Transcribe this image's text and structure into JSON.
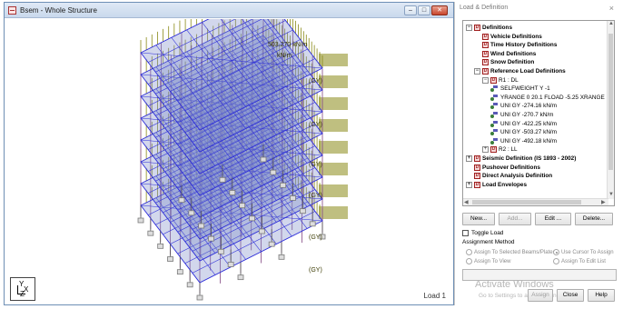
{
  "viewport": {
    "title": "Bsem - Whole Structure",
    "load_label": "Load 1",
    "axes": {
      "y": "Y",
      "x": "X",
      "z": "Z"
    },
    "load_annotations": [
      "503.270 kN/m",
      "kN/m",
      "(GY)",
      "(GY)",
      "(GY)",
      "(GY)",
      "(GY)",
      "(GY)"
    ],
    "colors": {
      "grid": "#2b2bd9",
      "loads": "#8a8a18",
      "members": "#8f5a8f",
      "supports": "#7a7a7a"
    }
  },
  "panel": {
    "title": "Load & Definition",
    "close": "×",
    "tree": [
      {
        "label": "Definitions",
        "level": 0,
        "expander": "−",
        "icon": "def",
        "bold": true
      },
      {
        "label": "Vehicle Definitions",
        "level": 1,
        "icon": "def",
        "bold": true
      },
      {
        "label": "Time History Definitions",
        "level": 1,
        "icon": "def",
        "bold": true
      },
      {
        "label": "Wind Definitions",
        "level": 1,
        "icon": "def",
        "bold": true
      },
      {
        "label": "Snow Definition",
        "level": 1,
        "icon": "def",
        "bold": true
      },
      {
        "label": "Reference Load Definitions",
        "level": 1,
        "expander": "−",
        "icon": "def",
        "bold": true
      },
      {
        "label": "R1 : DL",
        "level": 2,
        "expander": "−",
        "icon": "def",
        "bold": false
      },
      {
        "label": "SELFWEIGHT Y -1",
        "level": 3,
        "icon": "item",
        "bold": false
      },
      {
        "label": "YRANGE 0 20.1 FLOAD -5.25 XRANGE",
        "level": 3,
        "icon": "item",
        "bold": false
      },
      {
        "label": "UNI GY -274.16 kN/m",
        "level": 3,
        "icon": "item",
        "bold": false
      },
      {
        "label": "UNI GY -270.7 kN/m",
        "level": 3,
        "icon": "item",
        "bold": false
      },
      {
        "label": "UNI GY -422.25 kN/m",
        "level": 3,
        "icon": "item",
        "bold": false
      },
      {
        "label": "UNI GY -503.27 kN/m",
        "level": 3,
        "icon": "item",
        "bold": false
      },
      {
        "label": "UNI GY -492.18 kN/m",
        "level": 3,
        "icon": "item",
        "bold": false
      },
      {
        "label": "R2 : LL",
        "level": 2,
        "expander": "+",
        "icon": "def",
        "bold": false
      },
      {
        "label": "Seismic Definition (IS 1893 - 2002)",
        "level": 0,
        "expander": "+",
        "icon": "def",
        "bold": true
      },
      {
        "label": "Pushover Definitions",
        "level": 0,
        "icon": "def",
        "bold": true
      },
      {
        "label": "Direct Analysis Definition",
        "level": 0,
        "icon": "def",
        "bold": true
      },
      {
        "label": "Load Envelopes",
        "level": 0,
        "expander": "+",
        "icon": "def",
        "bold": true
      }
    ],
    "buttons": {
      "new": "New...",
      "add": "Add...",
      "edit": "Edit ...",
      "delete": "Delete..."
    },
    "toggle_load": "Toggle Load",
    "assignment_method": "Assignment Method",
    "radios": {
      "selected_beams": "Assign To Selected Beams/Plates",
      "use_cursor": "Use Cursor To Assign",
      "view": "Assign To View",
      "edit_list": "Assign To Edit List"
    },
    "watermark": {
      "line1": "Activate Windows",
      "line2": "Go to Settings to activate Windows."
    },
    "bottom_buttons": {
      "assign": "Assign",
      "close": "Close",
      "help": "Help"
    }
  }
}
